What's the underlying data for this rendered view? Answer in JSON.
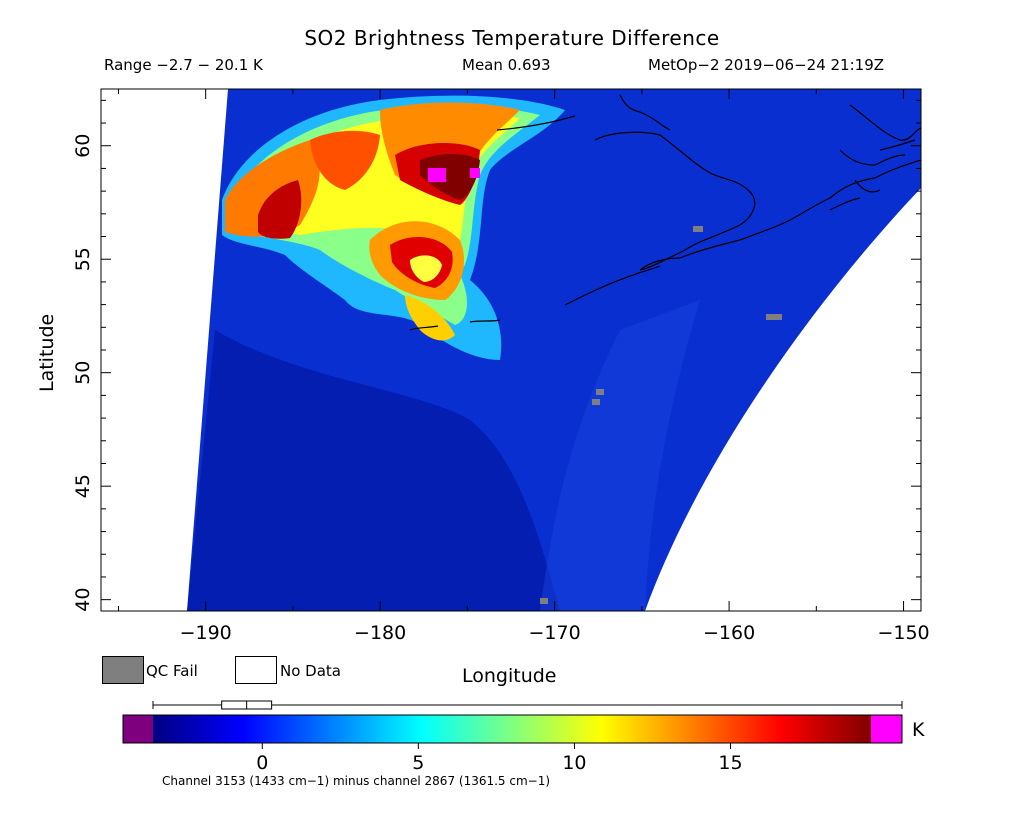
{
  "title": "SO2 Brightness Temperature Difference",
  "range_text": "Range −2.7 − 20.1 K",
  "mean_text": "Mean 0.693",
  "satellite_text": "MetOp−2 2019−06−24 21:19Z",
  "map": {
    "xlabel": "Longitude",
    "ylabel": "Latitude",
    "lon_range": [
      -196,
      -149
    ],
    "lat_range": [
      39.5,
      62.5
    ],
    "lon_ticks": [
      -190,
      -180,
      -170,
      -160,
      -150
    ],
    "lon_tick_labels": [
      "−190",
      "−180",
      "−170",
      "−160",
      "−150"
    ],
    "lat_ticks": [
      40,
      45,
      50,
      55,
      60
    ],
    "lat_tick_labels": [
      "40",
      "45",
      "50",
      "55",
      "60"
    ],
    "background_color": "#0a2fd0",
    "no_data_color": "#ffffff",
    "qc_fail_color": "#7f7f7f"
  },
  "legend": {
    "qc_fail_label": "QC Fail",
    "no_data_label": "No Data"
  },
  "colorbar": {
    "unit": "K",
    "min": -3.5,
    "max": 19.5,
    "ticks": [
      0,
      5,
      10,
      15
    ],
    "tick_labels": [
      "0",
      "5",
      "10",
      "15"
    ],
    "underflow_color": "#7f007f",
    "overflow_color": "#ff00ff",
    "colors": [
      "#000080",
      "#0000ff",
      "#0080ff",
      "#00ffff",
      "#80ff80",
      "#ffff00",
      "#ff8000",
      "#ff0000",
      "#800000"
    ],
    "box_range": [
      -1.3,
      0.3
    ],
    "box_median": -0.5
  },
  "footnote": "Channel 3153 (1433 cm−1) minus channel 2867 (1361.5 cm−1)"
}
